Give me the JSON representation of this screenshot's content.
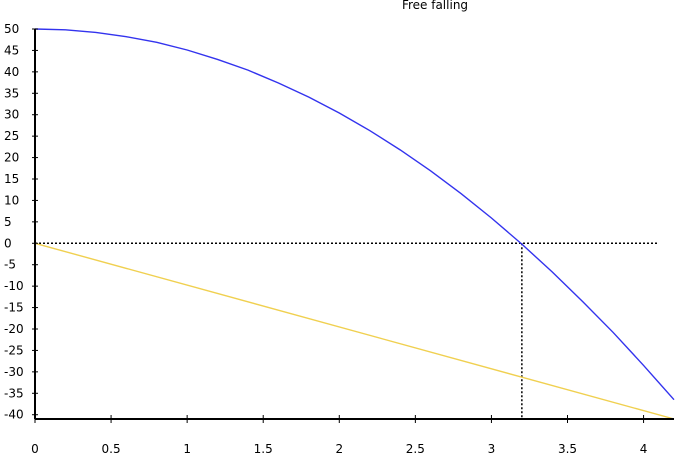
{
  "chart_data": {
    "type": "line",
    "title": "Free falling",
    "xlabel": "",
    "ylabel": "",
    "xlim": [
      0,
      4.2
    ],
    "ylim": [
      -41,
      50
    ],
    "x_ticks": [
      0,
      0.5,
      1,
      1.5,
      2,
      2.5,
      3,
      3.5,
      4
    ],
    "x_tick_labels": [
      "0",
      "0.5",
      "1",
      "1.5",
      "2",
      "2.5",
      "3",
      "3.5",
      "4"
    ],
    "y_ticks": [
      50,
      45,
      40,
      35,
      30,
      25,
      20,
      15,
      10,
      5,
      0,
      -5,
      -10,
      -15,
      -20,
      -25,
      -30,
      -35,
      -40
    ],
    "y_tick_labels": [
      "50",
      "45",
      "40",
      "35",
      "30",
      "25",
      "20",
      "15",
      "10",
      "5",
      "0",
      "-5",
      "-10",
      "-15",
      "-20",
      "-25",
      "-30",
      "-35",
      "-40"
    ],
    "grid": false,
    "series": [
      {
        "color": "#3333ee",
        "x": [
          0,
          0.2,
          0.4,
          0.6,
          0.8,
          1.0,
          1.2,
          1.4,
          1.6,
          1.8,
          2.0,
          2.2,
          2.4,
          2.6,
          2.8,
          3.0,
          3.2,
          3.4,
          3.6,
          3.8,
          4.0,
          4.2
        ],
        "y": [
          50,
          49.8,
          49.2,
          48.2,
          46.9,
          45.1,
          42.9,
          40.4,
          37.4,
          34.1,
          30.4,
          26.3,
          21.8,
          16.9,
          11.6,
          5.9,
          -0.2,
          -6.7,
          -13.6,
          -20.8,
          -28.5,
          -36.5
        ]
      },
      {
        "color": "#f0d050",
        "x": [
          0,
          4.2
        ],
        "y": [
          0,
          -41
        ]
      }
    ],
    "reference_lines": {
      "color": "#000000",
      "horizontal_y": 0,
      "horizontal_x_range": [
        0,
        4.1
      ],
      "vertical_x": 3.2,
      "vertical_y_range": [
        -41,
        0
      ]
    }
  }
}
